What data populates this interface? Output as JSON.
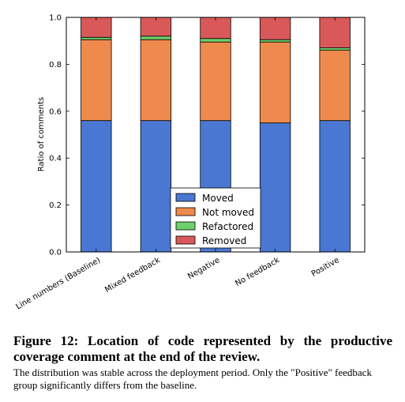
{
  "chart_data": {
    "type": "bar",
    "stacked": true,
    "categories": [
      "Line numbers (Baseline)",
      "Mixed feedback",
      "Negative",
      "No feedback",
      "Positive"
    ],
    "series": [
      {
        "name": "Moved",
        "color": "#4a77d1",
        "values": [
          0.56,
          0.56,
          0.56,
          0.55,
          0.56
        ]
      },
      {
        "name": "Not moved",
        "color": "#ee8a4d",
        "values": [
          0.345,
          0.345,
          0.335,
          0.345,
          0.3
        ]
      },
      {
        "name": "Refactored",
        "color": "#6ccf6a",
        "values": [
          0.01,
          0.015,
          0.015,
          0.01,
          0.01
        ]
      },
      {
        "name": "Removed",
        "color": "#d9595a",
        "values": [
          0.085,
          0.08,
          0.09,
          0.095,
          0.13
        ]
      }
    ],
    "ylabel": "Ratio of comments",
    "ylim": [
      0,
      1.0
    ],
    "yticks": [
      "0.0",
      "0.2",
      "0.4",
      "0.6",
      "0.8",
      "1.0"
    ],
    "legend_position": "bottom-center",
    "grid": false
  },
  "caption": {
    "title": "Figure 12: Location of code represented by the productive coverage comment at the end of the review.",
    "text": "The distribution was stable across the deployment period. Only the \"Positive\" feedback group significantly differs from the baseline."
  }
}
